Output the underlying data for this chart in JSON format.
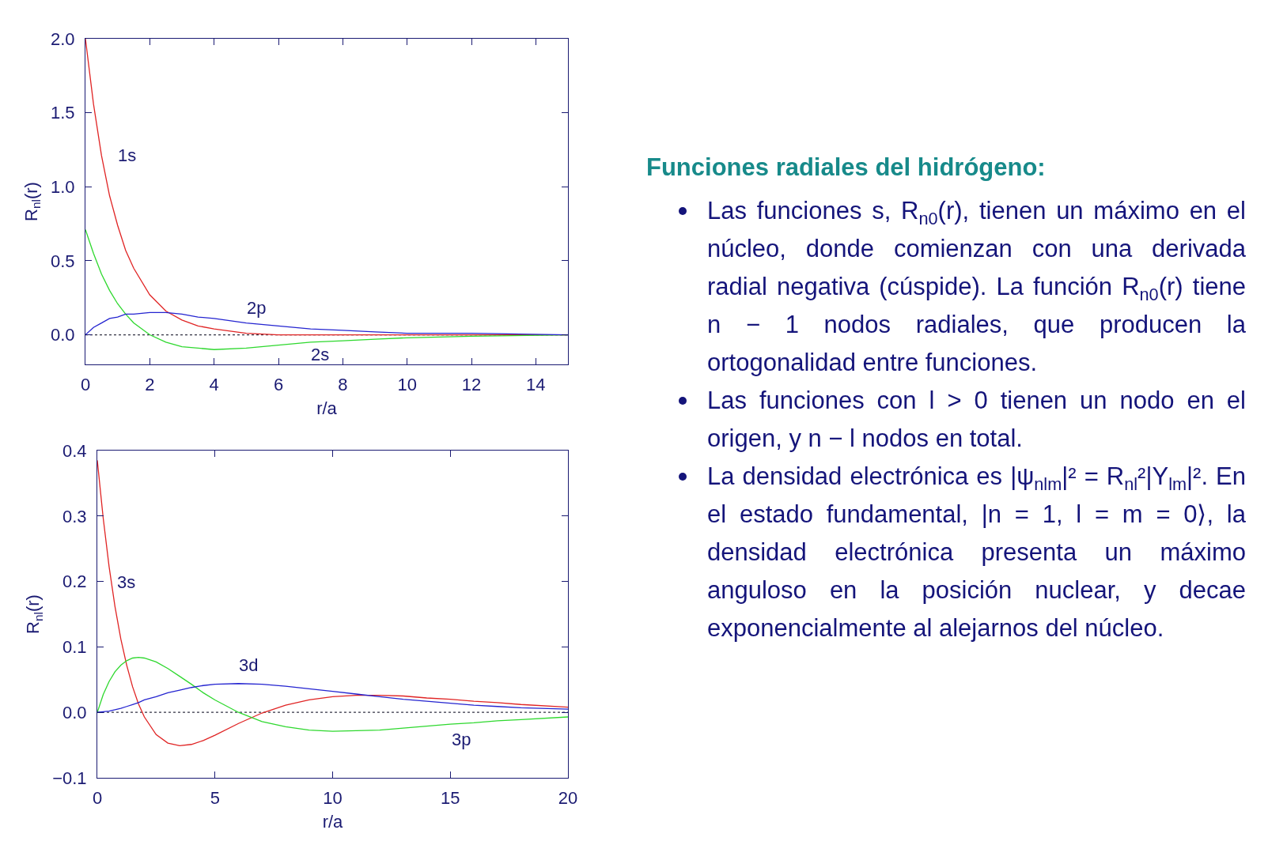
{
  "chart_data": [
    {
      "type": "line",
      "xlabel": "r/a",
      "ylabel": "R$_{nl}$(r)",
      "x": [
        0,
        0.25,
        0.5,
        0.75,
        1,
        1.25,
        1.5,
        2,
        2.5,
        3,
        3.5,
        4,
        5,
        6,
        7,
        8,
        9,
        10,
        12,
        15
      ],
      "series": [
        {
          "name": "1s",
          "color": "#e02424",
          "values": [
            2.0,
            1.56,
            1.21,
            0.94,
            0.74,
            0.57,
            0.45,
            0.27,
            0.16,
            0.1,
            0.06,
            0.04,
            0.01,
            0,
            0,
            0,
            0,
            0,
            0,
            0
          ]
        },
        {
          "name": "2s",
          "color": "#2ed82e",
          "values": [
            0.71,
            0.55,
            0.41,
            0.3,
            0.21,
            0.14,
            0.08,
            0,
            -0.05,
            -0.08,
            -0.09,
            -0.1,
            -0.09,
            -0.07,
            -0.05,
            -0.04,
            -0.03,
            -0.02,
            -0.01,
            0
          ]
        },
        {
          "name": "2p",
          "color": "#2424d0",
          "values": [
            0,
            0.05,
            0.08,
            0.11,
            0.12,
            0.14,
            0.14,
            0.15,
            0.15,
            0.14,
            0.12,
            0.11,
            0.08,
            0.06,
            0.04,
            0.03,
            0.02,
            0.01,
            0.01,
            0
          ]
        }
      ],
      "xlim": [
        0,
        15
      ],
      "xticks": [
        0,
        2,
        4,
        6,
        8,
        10,
        12,
        14
      ],
      "ylim": [
        -0.2,
        2.0
      ],
      "yticks": [
        {
          "value": 0,
          "label": "0.0"
        },
        0.5,
        {
          "value": 1,
          "label": "1.0"
        },
        1.5,
        {
          "value": 2,
          "label": "2.0"
        }
      ],
      "ref_lines": [
        {
          "axis": "y",
          "value": 0,
          "color": "#333344",
          "line_style": "dotted"
        }
      ],
      "grid": false,
      "legend": false
    },
    {
      "type": "line",
      "xlabel": "r/a",
      "ylabel": "R$_{nl}$(r)",
      "x": [
        0,
        0.25,
        0.5,
        0.75,
        1,
        1.25,
        1.5,
        1.75,
        2,
        2.5,
        3,
        3.5,
        4,
        4.5,
        5,
        6,
        7,
        8,
        9,
        10,
        11,
        12,
        13,
        14,
        15,
        16,
        17,
        18,
        20
      ],
      "series": [
        {
          "name": "3s",
          "color": "#e02424",
          "values": [
            0.385,
            0.297,
            0.223,
            0.162,
            0.112,
            0.072,
            0.039,
            0.013,
            -0.007,
            -0.034,
            -0.047,
            -0.051,
            -0.049,
            -0.043,
            -0.035,
            -0.017,
            -0.001,
            0.011,
            0.019,
            0.024,
            0.026,
            0.026,
            0.025,
            0.022,
            0.02,
            0.017,
            0.015,
            0.012,
            0.008
          ]
        },
        {
          "name": "3p",
          "color": "#2ed82e",
          "values": [
            0,
            0.027,
            0.047,
            0.062,
            0.072,
            0.079,
            0.083,
            0.084,
            0.083,
            0.077,
            0.067,
            0.055,
            0.043,
            0.03,
            0.019,
            0,
            -0.014,
            -0.022,
            -0.027,
            -0.029,
            -0.028,
            -0.027,
            -0.024,
            -0.021,
            -0.018,
            -0.016,
            -0.013,
            -0.011,
            -0.007
          ]
        },
        {
          "name": "3d",
          "color": "#2424d0",
          "values": [
            0,
            0.001,
            0.002,
            0.004,
            0.006,
            0.009,
            0.012,
            0.015,
            0.019,
            0.024,
            0.03,
            0.034,
            0.038,
            0.041,
            0.043,
            0.044,
            0.043,
            0.04,
            0.036,
            0.032,
            0.028,
            0.024,
            0.02,
            0.017,
            0.014,
            0.011,
            0.009,
            0.007,
            0.005
          ]
        }
      ],
      "xlim": [
        0,
        20
      ],
      "xticks": [
        0,
        5,
        10,
        15,
        20
      ],
      "ylim": [
        -0.1,
        0.4
      ],
      "yticks": [
        {
          "value": -0.1,
          "label": "−0.1"
        },
        {
          "value": 0,
          "label": "0.0"
        },
        0.1,
        0.2,
        0.3,
        0.4
      ],
      "ref_lines": [
        {
          "axis": "y",
          "value": 0,
          "color": "#333344",
          "line_style": "dotted"
        }
      ],
      "grid": false,
      "legend": false
    },
    {
      "type": "other",
      "title": "Funciones radiales del hidrógeno:",
      "annotations": [
        "Las funciones s, R$_{n0}$(r), tienen un máximo en el núcleo, donde comienzan con una derivada radial negativa (cúspide). La función R$_{n0}$(r) tiene n − 1 nodos radiales, que producen la ortogonalidad entre funciones.",
        "Las funciones con l > 0 tienen un nodo en el origen, y n − l nodos en total.",
        "La densidad electrónica es |ψ$_{nlm}$|² = R$_{nl}$²|Y$_{lm}$|². En el estado fundamental, |n = 1, l = m = 0⟩, la densidad electrónica presenta un máximo anguloso en la posición nuclear, y decae exponencialmente al alejarnos del núcleo."
      ]
    }
  ]
}
